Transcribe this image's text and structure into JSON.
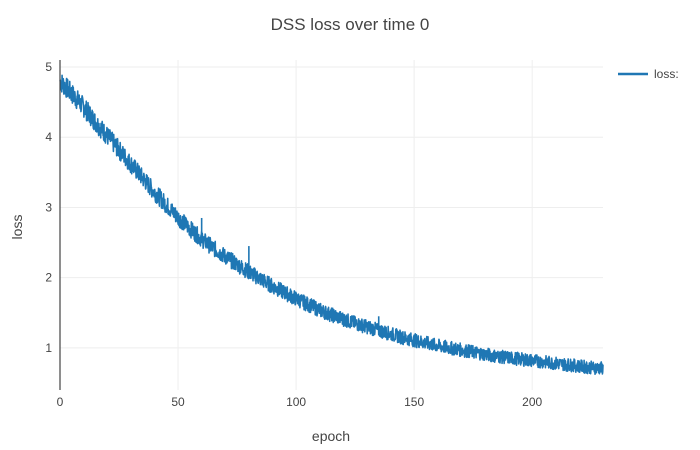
{
  "chart_data": {
    "type": "line",
    "title": "DSS loss over time 0",
    "xlabel": "epoch",
    "ylabel": "loss",
    "xlim": [
      0,
      230
    ],
    "ylim": [
      0.4,
      5.1
    ],
    "x_ticks": [
      0,
      50,
      100,
      150,
      200
    ],
    "y_ticks": [
      1,
      2,
      3,
      4,
      5
    ],
    "grid": true,
    "legend": {
      "position": "top-right",
      "entries": [
        "loss:"
      ]
    },
    "colors": {
      "series": "#1f77b4",
      "grid": "#eeeeee",
      "text": "#444444",
      "axis": "#444444"
    },
    "series": [
      {
        "name": "loss:",
        "x": [
          0,
          5,
          10,
          15,
          20,
          25,
          30,
          35,
          40,
          45,
          50,
          55,
          60,
          65,
          70,
          75,
          80,
          85,
          90,
          95,
          100,
          105,
          110,
          115,
          120,
          125,
          130,
          135,
          140,
          145,
          150,
          155,
          160,
          165,
          170,
          175,
          180,
          185,
          190,
          195,
          200,
          205,
          210,
          215,
          220,
          225,
          230
        ],
        "y": [
          4.8,
          4.62,
          4.43,
          4.22,
          4.02,
          3.82,
          3.62,
          3.42,
          3.22,
          3.04,
          2.86,
          2.7,
          2.55,
          2.42,
          2.3,
          2.19,
          2.08,
          1.98,
          1.88,
          1.79,
          1.7,
          1.62,
          1.54,
          1.47,
          1.41,
          1.35,
          1.3,
          1.25,
          1.2,
          1.15,
          1.11,
          1.07,
          1.03,
          1.0,
          0.97,
          0.94,
          0.91,
          0.88,
          0.86,
          0.84,
          0.82,
          0.8,
          0.78,
          0.76,
          0.74,
          0.72,
          0.71
        ],
        "noise_band": 0.15,
        "spikes": [
          [
            60,
            2.85
          ],
          [
            80,
            2.45
          ],
          [
            135,
            1.45
          ]
        ]
      }
    ]
  }
}
